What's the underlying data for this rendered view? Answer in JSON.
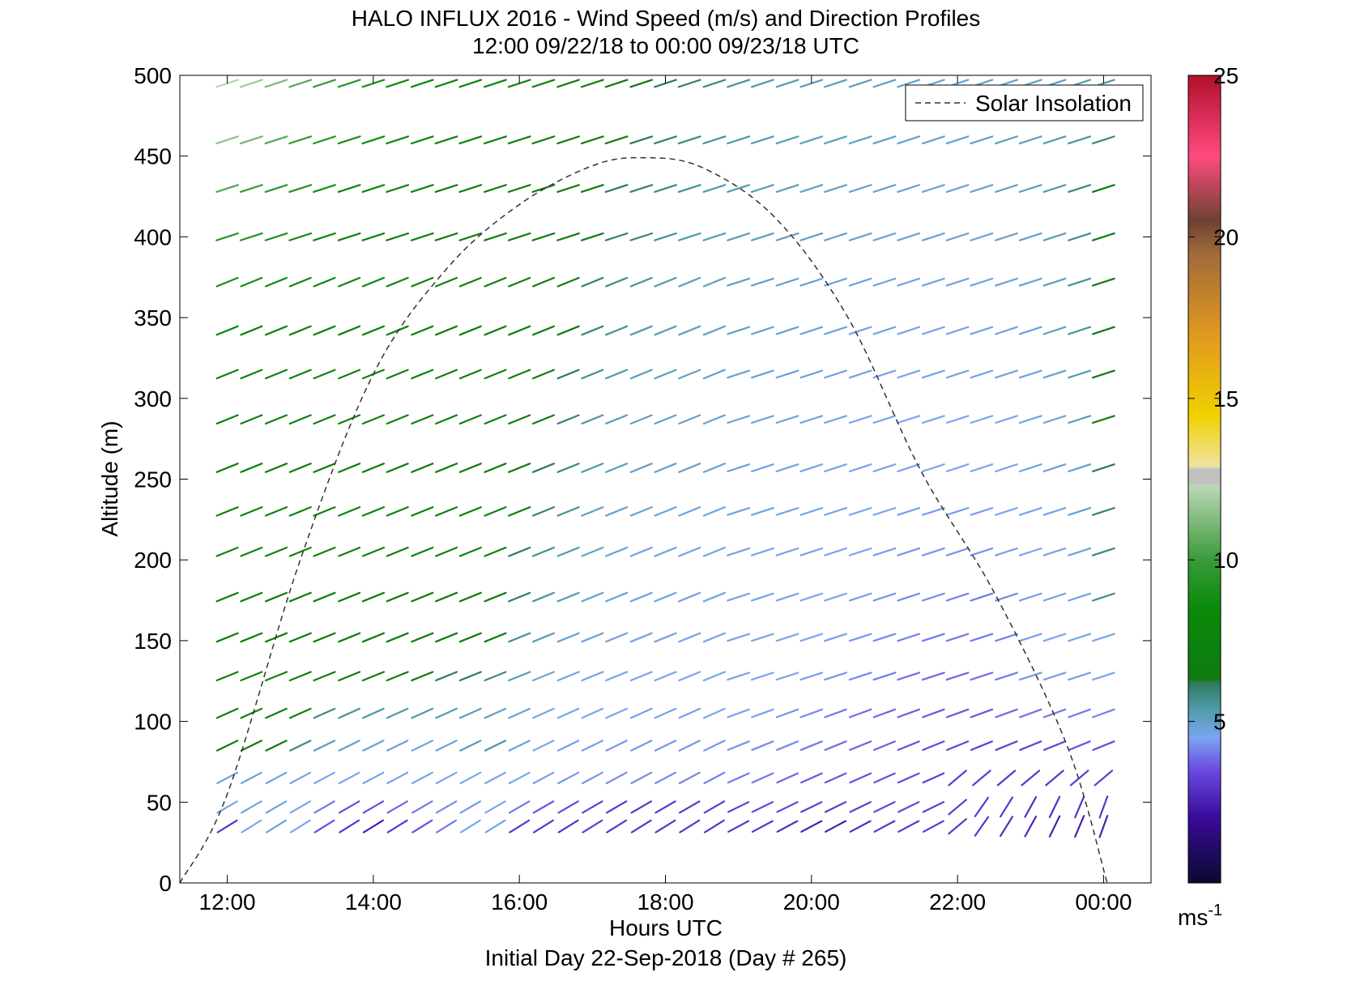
{
  "chart_data": {
    "type": "wind-barb-profile",
    "title": "HALO INFLUX 2016 - Wind Speed (m/s) and Direction Profiles",
    "subtitle": "12:00 09/22/18 to 00:00 09/23/18  UTC",
    "xlabel": "Hours UTC",
    "xlabel2": "Initial Day 22-Sep-2018 (Day # 265)",
    "ylabel": "Altitude (m)",
    "xlim": [
      11.35,
      24.65
    ],
    "ylim": [
      0,
      500
    ],
    "x_ticks": [
      {
        "value": 12,
        "label": "12:00"
      },
      {
        "value": 14,
        "label": "14:00"
      },
      {
        "value": 16,
        "label": "16:00"
      },
      {
        "value": 18,
        "label": "18:00"
      },
      {
        "value": 20,
        "label": "20:00"
      },
      {
        "value": 22,
        "label": "22:00"
      },
      {
        "value": 24,
        "label": "00:00"
      }
    ],
    "y_ticks": [
      0,
      50,
      100,
      150,
      200,
      250,
      300,
      350,
      400,
      450,
      500
    ],
    "colorbar": {
      "min": 0,
      "max": 25,
      "ticks": [
        5,
        10,
        15,
        20,
        25
      ],
      "unit_label": "ms",
      "unit_exponent": "-1",
      "stops": [
        {
          "v": 0,
          "c": "#0a0a2e"
        },
        {
          "v": 2,
          "c": "#3a0a9a"
        },
        {
          "v": 3.5,
          "c": "#6a4ae0"
        },
        {
          "v": 4.5,
          "c": "#7aa6f0"
        },
        {
          "v": 5.4,
          "c": "#4e9aa8"
        },
        {
          "v": 6.2,
          "c": "#2f7a5a"
        },
        {
          "v": 6.3,
          "c": "#0f7a10"
        },
        {
          "v": 8.5,
          "c": "#0a8a0a"
        },
        {
          "v": 10,
          "c": "#3a9a3a"
        },
        {
          "v": 12.3,
          "c": "#bcd8b6"
        },
        {
          "v": 12.4,
          "c": "#c0c0c0"
        },
        {
          "v": 12.8,
          "c": "#c0c0c0"
        },
        {
          "v": 12.9,
          "c": "#f0e4a0"
        },
        {
          "v": 14.5,
          "c": "#f0d000"
        },
        {
          "v": 17,
          "c": "#e09820"
        },
        {
          "v": 19.5,
          "c": "#a06a3a"
        },
        {
          "v": 20.5,
          "c": "#6e4232"
        },
        {
          "v": 22.5,
          "c": "#ff4a80"
        },
        {
          "v": 25,
          "c": "#b0102a"
        }
      ]
    },
    "legend": {
      "label": "Solar Insolation",
      "position": "top-right"
    },
    "solar_insolation": {
      "x": [
        11.35,
        12.0,
        13.0,
        14.0,
        15.0,
        16.0,
        17.0,
        17.7,
        18.5,
        19.5,
        20.5,
        21.5,
        22.5,
        23.5,
        24.05
      ],
      "y": [
        0,
        55,
        200,
        315,
        380,
        420,
        444,
        449,
        443,
        412,
        350,
        255,
        180,
        85,
        0
      ]
    },
    "barbs": {
      "times": [
        12.0,
        12.33,
        12.67,
        13.0,
        13.33,
        13.67,
        14.0,
        14.33,
        14.67,
        15.0,
        15.33,
        15.67,
        16.0,
        16.33,
        16.67,
        17.0,
        17.33,
        17.67,
        18.0,
        18.33,
        18.67,
        19.0,
        19.33,
        19.67,
        20.0,
        20.33,
        20.67,
        21.0,
        21.33,
        21.67,
        22.0,
        22.33,
        22.67,
        23.0,
        23.33,
        23.67,
        24.0
      ],
      "altitudes": [
        35,
        47,
        65,
        85,
        105,
        128,
        152,
        177,
        205,
        230,
        257,
        287,
        315,
        342,
        372,
        400,
        430,
        460,
        495
      ],
      "speed_grid": [
        [
          3.0,
          4.5,
          4.8,
          4.5,
          3.5,
          3.0,
          2.5,
          3.0,
          3.5,
          4.0,
          4.5,
          4.6,
          3.0,
          3.0,
          3.0,
          3.2,
          3.0,
          3.0,
          3.0,
          3.0,
          3.0,
          3.0,
          3.0,
          2.8,
          2.5,
          2.5,
          2.8,
          3.0,
          3.0,
          3.2,
          3.0,
          3.0,
          2.8,
          2.6,
          2.5,
          2.5,
          2.5
        ],
        [
          4.6,
          4.7,
          4.8,
          4.5,
          4.0,
          3.5,
          3.5,
          3.8,
          4.0,
          4.2,
          4.3,
          4.5,
          4.0,
          3.5,
          3.4,
          3.2,
          3.0,
          3.0,
          3.0,
          3.0,
          3.1,
          3.3,
          3.4,
          3.4,
          3.2,
          3.2,
          3.2,
          3.4,
          3.4,
          3.2,
          3.1,
          3.0,
          3.0,
          2.8,
          2.8,
          3.0,
          3.0
        ],
        [
          4.8,
          4.8,
          4.7,
          4.6,
          4.5,
          4.5,
          4.6,
          4.6,
          4.6,
          4.5,
          4.5,
          4.6,
          4.5,
          4.4,
          4.3,
          4.3,
          4.2,
          4.2,
          4.2,
          4.1,
          4.1,
          4.0,
          4.0,
          3.8,
          3.6,
          3.6,
          3.5,
          3.5,
          3.4,
          3.2,
          3.2,
          3.2,
          3.0,
          3.0,
          3.0,
          3.2,
          3.2
        ],
        [
          6.8,
          7.0,
          6.5,
          5.8,
          5.2,
          5.0,
          4.8,
          4.8,
          4.7,
          4.8,
          5.2,
          5.5,
          4.8,
          4.5,
          4.4,
          4.4,
          4.3,
          4.3,
          4.3,
          4.3,
          4.3,
          4.3,
          4.2,
          4.2,
          4.0,
          3.9,
          3.8,
          3.8,
          3.6,
          3.5,
          3.4,
          3.3,
          3.3,
          3.3,
          3.4,
          3.6,
          3.5
        ],
        [
          7.2,
          7.3,
          7.0,
          6.8,
          5.8,
          5.6,
          5.5,
          5.4,
          5.4,
          5.3,
          5.2,
          5.0,
          4.8,
          4.6,
          4.6,
          4.5,
          4.5,
          4.4,
          4.4,
          4.4,
          4.5,
          4.4,
          4.4,
          4.3,
          4.2,
          4.0,
          3.9,
          3.8,
          3.7,
          3.6,
          3.6,
          3.6,
          3.8,
          3.9,
          4.0,
          4.0,
          4.1
        ],
        [
          7.3,
          7.2,
          7.2,
          7.0,
          6.8,
          6.6,
          6.5,
          6.6,
          6.4,
          6.2,
          6.2,
          5.8,
          5.2,
          4.8,
          4.7,
          4.7,
          4.6,
          4.6,
          4.6,
          4.6,
          4.6,
          4.6,
          4.5,
          4.5,
          4.4,
          4.3,
          4.2,
          4.0,
          3.9,
          3.8,
          3.8,
          3.9,
          4.0,
          4.3,
          4.4,
          4.4,
          4.5
        ],
        [
          7.4,
          7.3,
          7.3,
          7.0,
          7.2,
          7.0,
          6.9,
          7.0,
          6.8,
          6.6,
          6.7,
          6.7,
          5.6,
          5.2,
          4.9,
          4.8,
          4.7,
          4.7,
          4.7,
          4.6,
          4.6,
          4.6,
          4.6,
          4.5,
          4.5,
          4.4,
          4.3,
          4.2,
          4.1,
          4.0,
          4.0,
          4.0,
          4.1,
          4.4,
          4.5,
          4.6,
          4.6
        ],
        [
          7.5,
          7.4,
          7.3,
          7.3,
          7.3,
          7.1,
          7.0,
          7.0,
          6.9,
          6.9,
          6.8,
          6.8,
          6.0,
          5.5,
          5.2,
          4.9,
          4.8,
          4.8,
          4.7,
          4.7,
          4.7,
          4.6,
          4.6,
          4.6,
          4.5,
          4.5,
          4.4,
          4.3,
          4.2,
          4.2,
          4.1,
          4.0,
          4.2,
          4.4,
          4.6,
          4.7,
          5.7
        ],
        [
          7.5,
          7.5,
          7.4,
          7.3,
          7.2,
          7.2,
          7.2,
          7.1,
          7.1,
          7.0,
          7.0,
          6.9,
          6.2,
          5.7,
          5.4,
          5.0,
          4.9,
          4.8,
          4.8,
          4.7,
          4.7,
          4.7,
          4.6,
          4.6,
          4.6,
          4.5,
          4.5,
          4.4,
          4.3,
          4.3,
          4.3,
          4.3,
          4.4,
          4.5,
          4.6,
          4.8,
          5.9
        ],
        [
          7.6,
          7.5,
          7.5,
          7.4,
          7.3,
          7.2,
          7.2,
          7.1,
          7.1,
          7.0,
          7.0,
          7.0,
          6.5,
          6.0,
          5.6,
          5.1,
          5.0,
          4.9,
          4.8,
          4.8,
          4.7,
          4.7,
          4.7,
          4.6,
          4.6,
          4.6,
          4.5,
          4.5,
          4.4,
          4.4,
          4.4,
          4.4,
          4.5,
          4.6,
          4.7,
          4.9,
          6.0
        ],
        [
          7.6,
          7.6,
          7.5,
          7.4,
          7.4,
          7.3,
          7.2,
          7.2,
          7.1,
          7.0,
          7.0,
          7.0,
          6.6,
          6.2,
          5.8,
          5.3,
          5.1,
          5.0,
          4.9,
          4.9,
          4.8,
          4.8,
          4.7,
          4.7,
          4.7,
          4.6,
          4.6,
          4.5,
          4.5,
          4.5,
          4.5,
          4.5,
          4.5,
          4.6,
          4.8,
          5.0,
          6.2
        ],
        [
          7.6,
          7.6,
          7.5,
          7.5,
          7.4,
          7.3,
          7.3,
          7.2,
          7.2,
          7.1,
          7.1,
          7.0,
          6.8,
          6.4,
          6.0,
          5.5,
          5.2,
          5.1,
          5.0,
          4.9,
          4.9,
          4.8,
          4.8,
          4.7,
          4.7,
          4.7,
          4.6,
          4.6,
          4.5,
          4.5,
          4.5,
          4.5,
          4.6,
          4.7,
          4.8,
          5.2,
          6.3
        ],
        [
          7.7,
          7.7,
          7.6,
          7.6,
          7.5,
          7.4,
          7.3,
          7.3,
          7.2,
          7.2,
          7.1,
          7.1,
          6.9,
          6.6,
          6.2,
          5.7,
          5.4,
          5.2,
          5.1,
          5.0,
          5.0,
          4.9,
          4.9,
          4.8,
          4.8,
          4.7,
          4.7,
          4.6,
          4.6,
          4.6,
          4.6,
          4.6,
          4.7,
          4.8,
          4.9,
          5.3,
          6.4
        ],
        [
          8.2,
          8.0,
          7.8,
          7.7,
          7.6,
          7.5,
          7.4,
          7.3,
          7.3,
          7.2,
          7.2,
          7.1,
          7.0,
          6.8,
          6.4,
          5.9,
          5.6,
          5.4,
          5.2,
          5.1,
          5.0,
          5.0,
          4.9,
          4.9,
          4.8,
          4.8,
          4.7,
          4.7,
          4.6,
          4.6,
          4.6,
          4.7,
          4.7,
          4.8,
          5.0,
          5.5,
          6.5
        ],
        [
          9.0,
          8.8,
          8.6,
          8.2,
          7.9,
          7.6,
          7.5,
          7.4,
          7.3,
          7.3,
          7.2,
          7.2,
          7.1,
          6.9,
          6.6,
          6.1,
          5.8,
          5.6,
          5.4,
          5.2,
          5.1,
          5.0,
          5.0,
          4.9,
          4.9,
          4.8,
          4.8,
          4.7,
          4.7,
          4.7,
          4.7,
          4.7,
          4.8,
          4.9,
          5.1,
          5.6,
          6.6
        ],
        [
          9.5,
          9.4,
          9.2,
          8.8,
          8.3,
          7.9,
          7.6,
          7.5,
          7.4,
          7.4,
          7.3,
          7.3,
          7.2,
          7.0,
          6.8,
          6.4,
          6.0,
          5.8,
          5.6,
          5.4,
          5.3,
          5.2,
          5.1,
          5.0,
          5.0,
          4.9,
          4.9,
          4.8,
          4.8,
          4.8,
          4.8,
          4.8,
          4.9,
          5.0,
          5.2,
          5.7,
          6.8
        ],
        [
          10.5,
          10.0,
          9.6,
          9.2,
          8.8,
          8.4,
          8.0,
          7.8,
          7.6,
          7.5,
          7.4,
          7.4,
          7.3,
          7.2,
          7.0,
          6.6,
          6.2,
          6.0,
          5.8,
          5.6,
          5.4,
          5.3,
          5.2,
          5.1,
          5.0,
          5.0,
          4.9,
          4.9,
          4.8,
          4.8,
          4.8,
          4.9,
          5.0,
          5.1,
          5.3,
          5.8,
          6.6
        ],
        [
          11.5,
          11.0,
          10.5,
          10.0,
          9.5,
          9.0,
          8.6,
          8.2,
          7.9,
          7.7,
          7.6,
          7.5,
          7.4,
          7.3,
          7.1,
          6.8,
          6.4,
          6.2,
          6.0,
          5.8,
          5.6,
          5.4,
          5.3,
          5.2,
          5.1,
          5.1,
          5.0,
          5.0,
          4.9,
          4.9,
          4.9,
          5.0,
          5.0,
          5.1,
          5.3,
          5.5,
          5.8
        ],
        [
          12.2,
          11.8,
          11.2,
          10.6,
          10.0,
          9.5,
          9.0,
          8.6,
          8.2,
          7.9,
          7.7,
          7.6,
          7.5,
          7.4,
          7.2,
          7.0,
          6.6,
          6.4,
          6.2,
          6.0,
          5.8,
          5.6,
          5.4,
          5.3,
          5.2,
          5.1,
          5.1,
          5.0,
          5.0,
          4.9,
          4.9,
          5.0,
          5.0,
          5.0,
          5.2,
          5.3,
          5.4
        ]
      ],
      "direction_note": "segments point toward upper-right"
    }
  }
}
